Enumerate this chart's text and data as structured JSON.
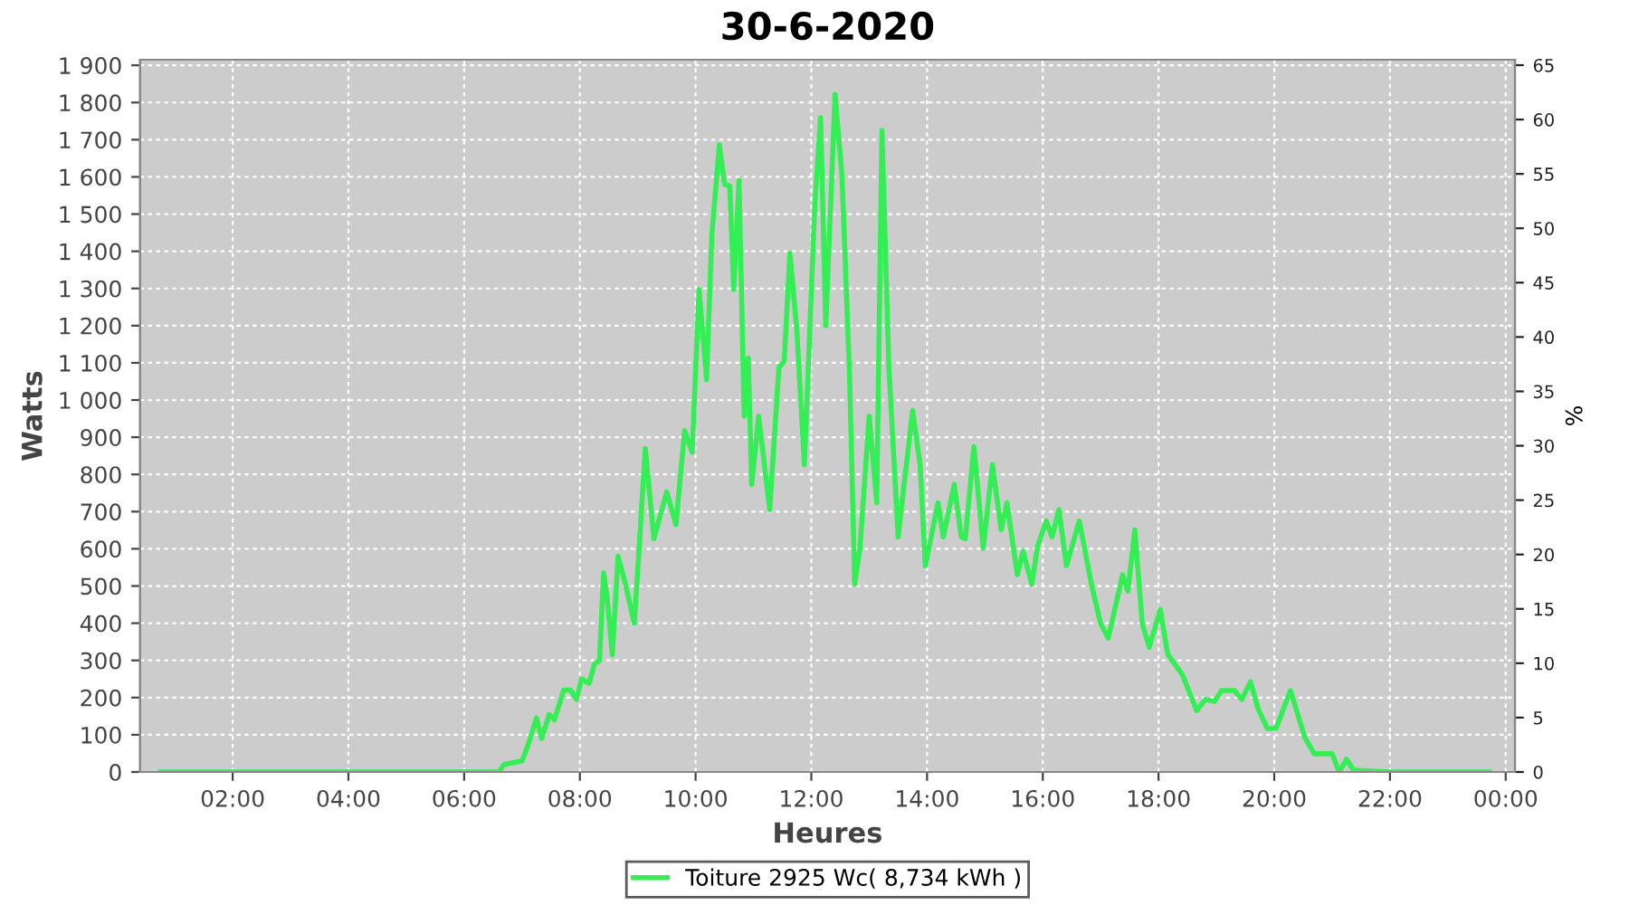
{
  "chart_data": {
    "type": "line",
    "title": "30-6-2020",
    "xlabel": "Heures",
    "ylabel": "Watts",
    "y2label": "%",
    "xlim": [
      0.4,
      24.16
    ],
    "xticks": [
      {
        "value": 2,
        "label": "02:00"
      },
      {
        "value": 4,
        "label": "04:00"
      },
      {
        "value": 6,
        "label": "06:00"
      },
      {
        "value": 8,
        "label": "08:00"
      },
      {
        "value": 10,
        "label": "10:00"
      },
      {
        "value": 12,
        "label": "12:00"
      },
      {
        "value": 14,
        "label": "14:00"
      },
      {
        "value": 16,
        "label": "16:00"
      },
      {
        "value": 18,
        "label": "18:00"
      },
      {
        "value": 20,
        "label": "20:00"
      },
      {
        "value": 22,
        "label": "22:00"
      },
      {
        "value": 24,
        "label": "00:00"
      }
    ],
    "ylim": [
      0,
      1915
    ],
    "yticks": [
      0,
      100,
      200,
      300,
      400,
      500,
      600,
      700,
      800,
      900,
      {
        "value": 1000,
        "label": "1 000"
      },
      {
        "value": 1100,
        "label": "1 100"
      },
      {
        "value": 1200,
        "label": "1 200"
      },
      {
        "value": 1300,
        "label": "1 300"
      },
      {
        "value": 1400,
        "label": "1 400"
      },
      {
        "value": 1500,
        "label": "1 500"
      },
      {
        "value": 1600,
        "label": "1 600"
      },
      {
        "value": 1700,
        "label": "1 700"
      },
      {
        "value": 1800,
        "label": "1 800"
      },
      {
        "value": 1900,
        "label": "1 900"
      }
    ],
    "y2lim": [
      0,
      65.5
    ],
    "y2ticks": [
      0,
      5,
      10,
      15,
      20,
      25,
      30,
      35,
      40,
      45,
      50,
      55,
      60,
      65
    ],
    "grid": true,
    "legend": "bottom",
    "marker": "none",
    "line_style": "solid",
    "series": [
      {
        "name": "Toiture 2925 Wc( 8,734 kWh )",
        "color": "#33ee55",
        "x": [
          0.75,
          1.5,
          2.5,
          3.5,
          4.5,
          5.5,
          6.3,
          6.6,
          6.69,
          7.0,
          7.1,
          7.25,
          7.34,
          7.47,
          7.56,
          7.72,
          7.84,
          7.94,
          8.03,
          8.16,
          8.25,
          8.34,
          8.41,
          8.47,
          8.56,
          8.66,
          8.78,
          8.94,
          9.03,
          9.13,
          9.28,
          9.5,
          9.66,
          9.81,
          9.94,
          10.06,
          10.19,
          10.28,
          10.41,
          10.5,
          10.59,
          10.66,
          10.75,
          10.84,
          10.91,
          10.97,
          11.09,
          11.28,
          11.44,
          11.53,
          11.63,
          11.75,
          11.88,
          12.06,
          12.16,
          12.25,
          12.41,
          12.53,
          12.66,
          12.75,
          12.84,
          13.0,
          13.13,
          13.22,
          13.34,
          13.5,
          13.75,
          13.88,
          13.97,
          14.19,
          14.28,
          14.47,
          14.59,
          14.66,
          14.81,
          14.97,
          15.13,
          15.28,
          15.38,
          15.56,
          15.66,
          15.81,
          15.91,
          16.06,
          16.16,
          16.28,
          16.41,
          16.63,
          16.84,
          17.0,
          17.13,
          17.38,
          17.47,
          17.59,
          17.72,
          17.84,
          18.03,
          18.16,
          18.41,
          18.66,
          18.81,
          18.97,
          19.09,
          19.31,
          19.44,
          19.59,
          19.72,
          19.88,
          20.03,
          20.28,
          20.53,
          20.69,
          21.0,
          21.12,
          21.25,
          21.37,
          22.0,
          23.0,
          23.72
        ],
        "values": [
          0,
          0,
          0,
          0,
          0,
          0,
          0,
          0,
          20,
          30,
          70,
          145,
          90,
          155,
          140,
          220,
          220,
          195,
          250,
          238,
          290,
          300,
          535,
          470,
          315,
          580,
          510,
          400,
          615,
          870,
          627,
          753,
          665,
          918,
          860,
          1297,
          1055,
          1443,
          1686,
          1580,
          1575,
          1297,
          1590,
          957,
          1113,
          773,
          957,
          705,
          1088,
          1103,
          1395,
          1186,
          826,
          1526,
          1759,
          1200,
          1822,
          1603,
          1069,
          505,
          602,
          957,
          724,
          1725,
          1088,
          632,
          972,
          826,
          554,
          724,
          632,
          773,
          632,
          627,
          875,
          602,
          826,
          651,
          724,
          530,
          593,
          505,
          607,
          675,
          632,
          705,
          554,
          675,
          505,
          398,
          360,
          530,
          486,
          651,
          398,
          335,
          437,
          316,
          262,
          165,
          195,
          190,
          219,
          219,
          195,
          243,
          170,
          117,
          117,
          219,
          92,
          49,
          49,
          0,
          34,
          5,
          0,
          0,
          0
        ]
      }
    ]
  }
}
